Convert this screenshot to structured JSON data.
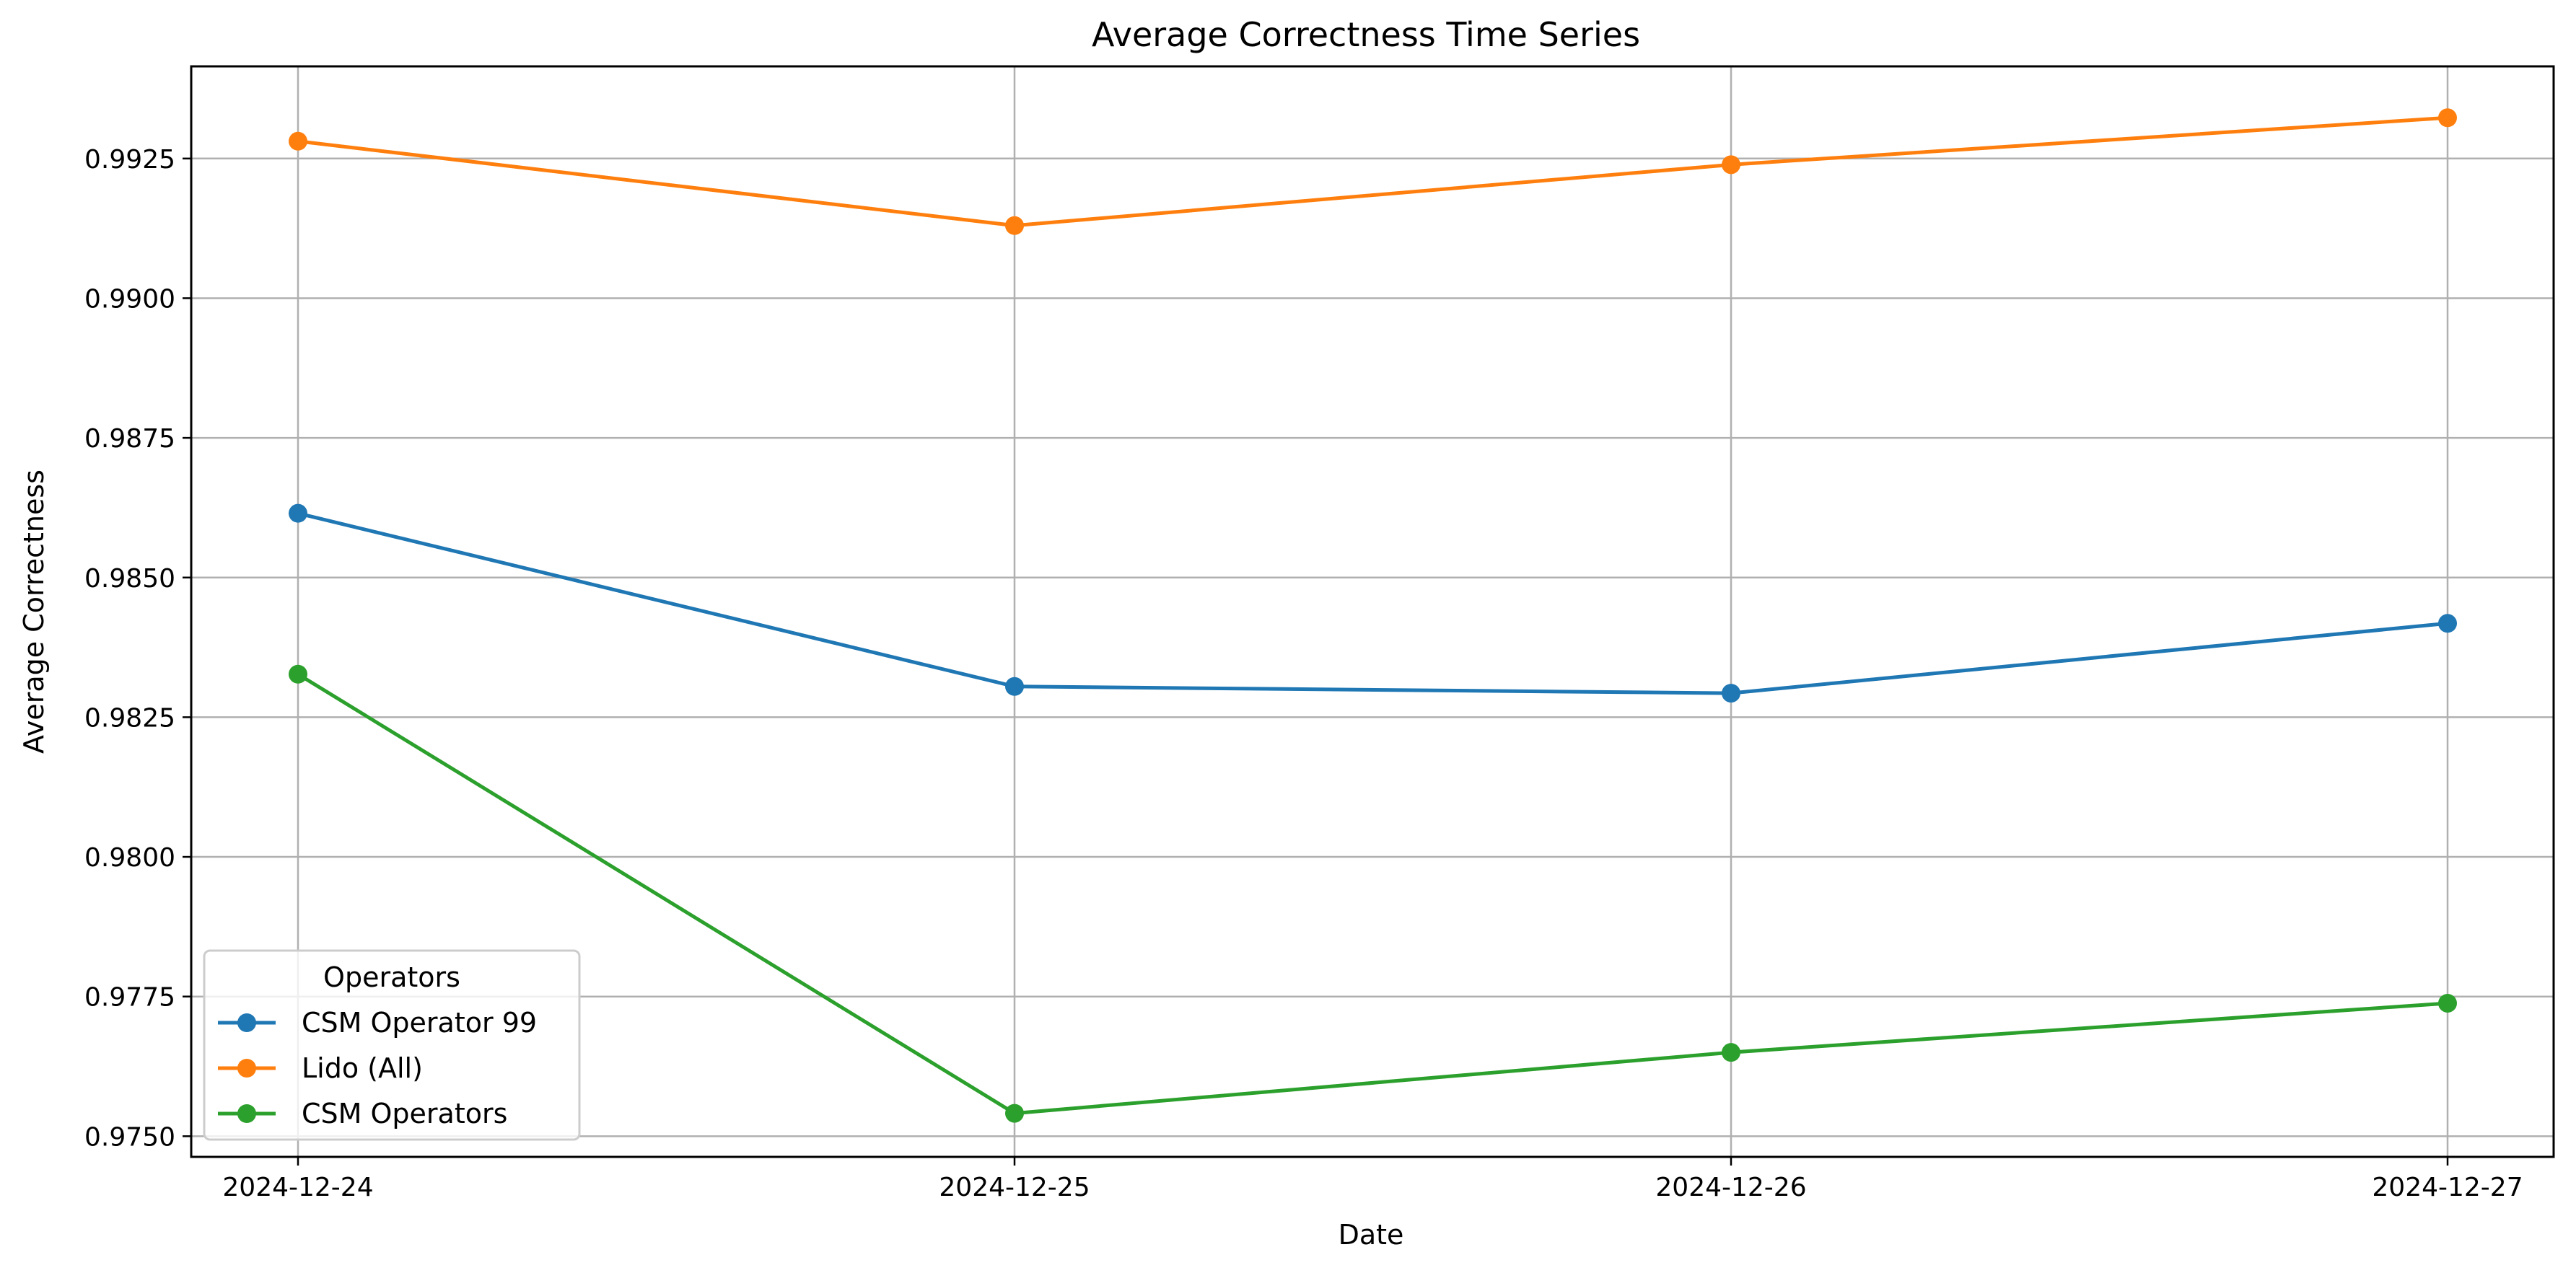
{
  "chart_data": {
    "type": "line",
    "title": "Average Correctness Time Series",
    "xlabel": "Date",
    "ylabel": "Average Correctness",
    "x": [
      "2024-12-24",
      "2024-12-25",
      "2024-12-26",
      "2024-12-27"
    ],
    "ylim": [
      0.97463,
      0.99415
    ],
    "yticks": [
      0.975,
      0.9775,
      0.98,
      0.9825,
      0.985,
      0.9875,
      0.99,
      0.9925
    ],
    "ytick_labels": [
      "0.9750",
      "0.9775",
      "0.9800",
      "0.9825",
      "0.9850",
      "0.9875",
      "0.9900",
      "0.9925"
    ],
    "grid": true,
    "legend": {
      "title": "Operators",
      "placement": "lower-left"
    },
    "series": [
      {
        "name": "CSM Operator 99",
        "color": "#1f77b4",
        "values": [
          0.98615,
          0.98305,
          0.98293,
          0.98418
        ]
      },
      {
        "name": "Lido (All)",
        "color": "#ff7f0e",
        "values": [
          0.99281,
          0.9913,
          0.99239,
          0.99323
        ]
      },
      {
        "name": "CSM Operators",
        "color": "#2ca02c",
        "values": [
          0.98327,
          0.97541,
          0.9765,
          0.97738
        ]
      }
    ]
  }
}
